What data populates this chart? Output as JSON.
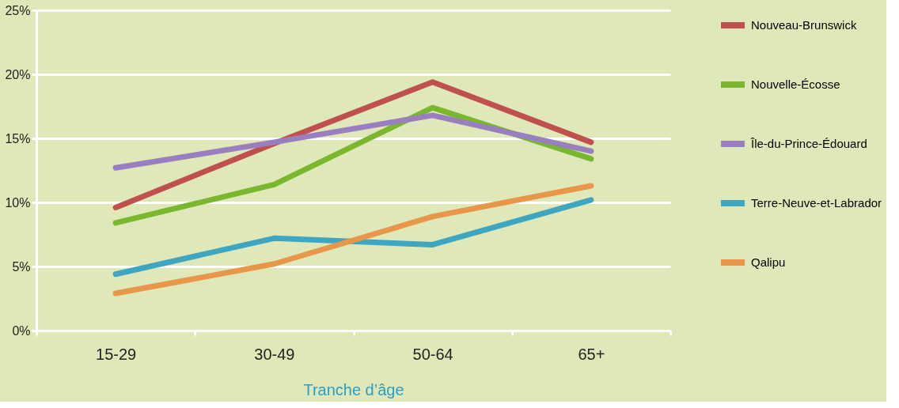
{
  "chart_data": {
    "type": "line",
    "xlabel": "Tranche d’âge",
    "categories": [
      "15-29",
      "30-49",
      "50-64",
      "65+"
    ],
    "series": [
      {
        "name": "Nouveau-Brunswick",
        "color": "#c0504d",
        "values": [
          9.6,
          14.6,
          19.4,
          14.7
        ]
      },
      {
        "name": "Nouvelle-Écosse",
        "color": "#7ab72f",
        "values": [
          8.4,
          11.4,
          17.4,
          13.4
        ]
      },
      {
        "name": "Île-du-Prince-Édouard",
        "color": "#9a7fc0",
        "values": [
          12.7,
          14.7,
          16.8,
          14.0
        ]
      },
      {
        "name": "Terre-Neuve-et-Labrador",
        "color": "#3ea6c0",
        "values": [
          4.4,
          7.2,
          6.7,
          10.2
        ]
      },
      {
        "name": "Qalipu",
        "color": "#e8974a",
        "values": [
          2.9,
          5.2,
          8.9,
          11.3
        ]
      }
    ],
    "ylim": [
      0,
      25
    ],
    "yticks": [
      {
        "value": 0,
        "label": "0%"
      },
      {
        "value": 5,
        "label": "5%"
      },
      {
        "value": 10,
        "label": "10%"
      },
      {
        "value": 15,
        "label": "15%"
      },
      {
        "value": 20,
        "label": "20%"
      },
      {
        "value": 25,
        "label": "25%"
      }
    ],
    "grid": "y",
    "legend": "right",
    "marker": "none",
    "line_style": "solid"
  }
}
